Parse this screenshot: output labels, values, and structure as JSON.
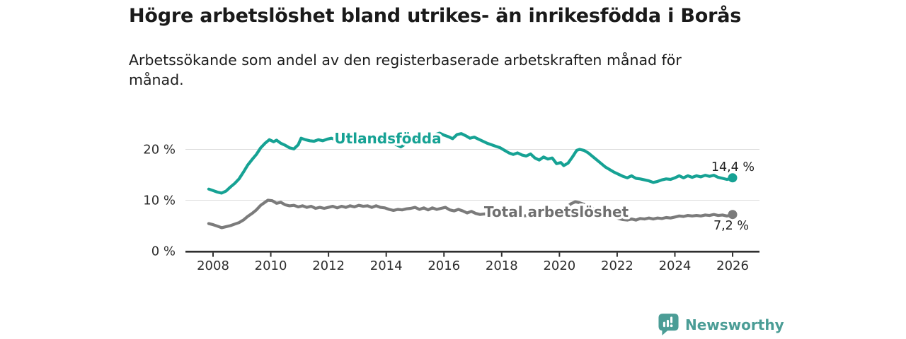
{
  "header": {
    "title": "Högre arbetslöshet bland utrikes- än inrikesfödda i Borås",
    "subtitle": "Arbetssökande som andel av den registerbaserade arbetskraften månad för månad."
  },
  "footer": {
    "brand": "Newsworthy",
    "logo_icon": "bar-chart-speech-bubble-icon"
  },
  "colors": {
    "accent_teal": "#16a294",
    "line_gray": "#7b7b7b",
    "label_gray": "#6f6f6f",
    "logo_teal": "#4b9d96",
    "title_text": "#1a1a1a",
    "body_text": "#1c1c1c",
    "axis_text": "#2e2e2e",
    "axis_line": "#2f2f2f",
    "gridline": "#dcdcdc",
    "value_label": "#222222"
  },
  "chart_data": {
    "type": "line",
    "title": "Högre arbetslöshet bland utrikes- än inrikesfödda i Borås",
    "subtitle": "Arbetssökande som andel av den registerbaserade arbetskraften månad för månad.",
    "grid": "horizontal",
    "legend_position": "inline-labels",
    "x_axis": {
      "range": [
        2007.0,
        2027.0
      ],
      "ticks": [
        2008,
        2010,
        2012,
        2014,
        2016,
        2018,
        2020,
        2022,
        2024,
        2026
      ]
    },
    "y_axis": {
      "range": [
        0,
        25
      ],
      "unit": "%",
      "ticks": [
        {
          "value": 0,
          "label": "0 %"
        },
        {
          "value": 10,
          "label": "10 %"
        },
        {
          "value": 20,
          "label": "20 %"
        }
      ]
    },
    "series": [
      {
        "id": "utlandsfodda",
        "name": "Utlandsfödda",
        "color": "#16a294",
        "end_value": 14.4,
        "end_label": "14,4 %",
        "points": [
          [
            2007.85,
            12.2
          ],
          [
            2008,
            11.9
          ],
          [
            2008.15,
            11.6
          ],
          [
            2008.3,
            11.4
          ],
          [
            2008.45,
            11.8
          ],
          [
            2008.6,
            12.6
          ],
          [
            2008.75,
            13.3
          ],
          [
            2008.9,
            14.2
          ],
          [
            2009.05,
            15.5
          ],
          [
            2009.2,
            16.9
          ],
          [
            2009.35,
            18
          ],
          [
            2009.5,
            19
          ],
          [
            2009.65,
            20.3
          ],
          [
            2009.8,
            21.2
          ],
          [
            2009.95,
            21.9
          ],
          [
            2010.1,
            21.5
          ],
          [
            2010.2,
            21.8
          ],
          [
            2010.35,
            21.2
          ],
          [
            2010.5,
            20.8
          ],
          [
            2010.65,
            20.3
          ],
          [
            2010.8,
            20.1
          ],
          [
            2010.95,
            20.9
          ],
          [
            2011.05,
            22.2
          ],
          [
            2011.2,
            21.9
          ],
          [
            2011.35,
            21.7
          ],
          [
            2011.5,
            21.6
          ],
          [
            2011.65,
            21.9
          ],
          [
            2011.8,
            21.7
          ],
          [
            2011.95,
            22
          ],
          [
            2012.1,
            22.2
          ],
          [
            2012.25,
            21.9
          ],
          [
            2012.4,
            22.5
          ],
          [
            2012.55,
            22.2
          ],
          [
            2012.7,
            22.4
          ],
          [
            2012.85,
            22.1
          ],
          [
            2013,
            22.3
          ],
          [
            2013.15,
            22
          ],
          [
            2013.3,
            22.3
          ],
          [
            2013.45,
            21.9
          ],
          [
            2013.6,
            22.1
          ],
          [
            2013.75,
            21.8
          ],
          [
            2013.9,
            21.9
          ],
          [
            2014.05,
            21.6
          ],
          [
            2014.2,
            21.3
          ],
          [
            2014.35,
            20.9
          ],
          [
            2014.5,
            20.5
          ],
          [
            2014.65,
            21
          ],
          [
            2014.8,
            21.5
          ],
          [
            2014.95,
            21.7
          ],
          [
            2015.1,
            21.9
          ],
          [
            2015.25,
            22.1
          ],
          [
            2015.4,
            22.4
          ],
          [
            2015.55,
            22.6
          ],
          [
            2015.7,
            22.9
          ],
          [
            2015.85,
            23.2
          ],
          [
            2016,
            22.8
          ],
          [
            2016.15,
            22.5
          ],
          [
            2016.3,
            22.1
          ],
          [
            2016.45,
            22.9
          ],
          [
            2016.6,
            23.1
          ],
          [
            2016.75,
            22.7
          ],
          [
            2016.9,
            22.2
          ],
          [
            2017.05,
            22.4
          ],
          [
            2017.2,
            22
          ],
          [
            2017.35,
            21.6
          ],
          [
            2017.5,
            21.2
          ],
          [
            2017.65,
            20.9
          ],
          [
            2017.8,
            20.6
          ],
          [
            2017.95,
            20.3
          ],
          [
            2018.1,
            19.8
          ],
          [
            2018.25,
            19.3
          ],
          [
            2018.4,
            19
          ],
          [
            2018.55,
            19.3
          ],
          [
            2018.7,
            18.9
          ],
          [
            2018.85,
            18.7
          ],
          [
            2019,
            19.1
          ],
          [
            2019.15,
            18.3
          ],
          [
            2019.3,
            17.9
          ],
          [
            2019.45,
            18.5
          ],
          [
            2019.6,
            18.1
          ],
          [
            2019.75,
            18.3
          ],
          [
            2019.9,
            17.2
          ],
          [
            2020.05,
            17.4
          ],
          [
            2020.15,
            16.8
          ],
          [
            2020.3,
            17.3
          ],
          [
            2020.45,
            18.5
          ],
          [
            2020.6,
            19.8
          ],
          [
            2020.7,
            20
          ],
          [
            2020.85,
            19.8
          ],
          [
            2021,
            19.3
          ],
          [
            2021.15,
            18.6
          ],
          [
            2021.3,
            17.9
          ],
          [
            2021.45,
            17.2
          ],
          [
            2021.6,
            16.5
          ],
          [
            2021.75,
            16
          ],
          [
            2021.9,
            15.5
          ],
          [
            2022.05,
            15.1
          ],
          [
            2022.2,
            14.7
          ],
          [
            2022.35,
            14.4
          ],
          [
            2022.5,
            14.8
          ],
          [
            2022.65,
            14.3
          ],
          [
            2022.8,
            14.2
          ],
          [
            2022.95,
            14
          ],
          [
            2023.1,
            13.8
          ],
          [
            2023.25,
            13.5
          ],
          [
            2023.4,
            13.7
          ],
          [
            2023.55,
            14
          ],
          [
            2023.7,
            14.2
          ],
          [
            2023.85,
            14.1
          ],
          [
            2024,
            14.4
          ],
          [
            2024.15,
            14.8
          ],
          [
            2024.3,
            14.4
          ],
          [
            2024.45,
            14.8
          ],
          [
            2024.6,
            14.5
          ],
          [
            2024.75,
            14.8
          ],
          [
            2024.9,
            14.6
          ],
          [
            2025.05,
            14.9
          ],
          [
            2025.2,
            14.7
          ],
          [
            2025.35,
            14.9
          ],
          [
            2025.5,
            14.5
          ],
          [
            2025.65,
            14.3
          ],
          [
            2025.8,
            14.1
          ],
          [
            2025.9,
            14.2
          ],
          [
            2026,
            14.4
          ]
        ]
      },
      {
        "id": "total-arbetsloshet",
        "name": "Total arbetslöshet",
        "color": "#7b7b7b",
        "end_value": 7.2,
        "end_label": "7,2 %",
        "points": [
          [
            2007.85,
            5.4
          ],
          [
            2008,
            5.2
          ],
          [
            2008.15,
            4.9
          ],
          [
            2008.3,
            4.6
          ],
          [
            2008.45,
            4.8
          ],
          [
            2008.6,
            5
          ],
          [
            2008.75,
            5.3
          ],
          [
            2008.9,
            5.6
          ],
          [
            2009.05,
            6.1
          ],
          [
            2009.2,
            6.8
          ],
          [
            2009.35,
            7.4
          ],
          [
            2009.5,
            8.1
          ],
          [
            2009.65,
            9
          ],
          [
            2009.8,
            9.6
          ],
          [
            2009.9,
            10
          ],
          [
            2010.05,
            9.9
          ],
          [
            2010.2,
            9.4
          ],
          [
            2010.35,
            9.6
          ],
          [
            2010.5,
            9.1
          ],
          [
            2010.65,
            8.9
          ],
          [
            2010.8,
            9
          ],
          [
            2010.95,
            8.7
          ],
          [
            2011.1,
            8.9
          ],
          [
            2011.25,
            8.6
          ],
          [
            2011.4,
            8.8
          ],
          [
            2011.55,
            8.4
          ],
          [
            2011.7,
            8.6
          ],
          [
            2011.85,
            8.4
          ],
          [
            2012,
            8.6
          ],
          [
            2012.15,
            8.8
          ],
          [
            2012.3,
            8.5
          ],
          [
            2012.45,
            8.8
          ],
          [
            2012.6,
            8.6
          ],
          [
            2012.75,
            8.9
          ],
          [
            2012.9,
            8.7
          ],
          [
            2013.05,
            9
          ],
          [
            2013.2,
            8.8
          ],
          [
            2013.35,
            8.9
          ],
          [
            2013.5,
            8.6
          ],
          [
            2013.65,
            8.9
          ],
          [
            2013.8,
            8.6
          ],
          [
            2013.95,
            8.5
          ],
          [
            2014.1,
            8.2
          ],
          [
            2014.25,
            8
          ],
          [
            2014.4,
            8.2
          ],
          [
            2014.55,
            8.1
          ],
          [
            2014.7,
            8.3
          ],
          [
            2014.85,
            8.4
          ],
          [
            2015,
            8.6
          ],
          [
            2015.15,
            8.2
          ],
          [
            2015.3,
            8.5
          ],
          [
            2015.45,
            8.1
          ],
          [
            2015.6,
            8.5
          ],
          [
            2015.75,
            8.2
          ],
          [
            2015.9,
            8.4
          ],
          [
            2016.05,
            8.6
          ],
          [
            2016.2,
            8.1
          ],
          [
            2016.35,
            7.9
          ],
          [
            2016.5,
            8.2
          ],
          [
            2016.65,
            7.9
          ],
          [
            2016.8,
            7.5
          ],
          [
            2016.95,
            7.8
          ],
          [
            2017.1,
            7.4
          ],
          [
            2017.25,
            7.2
          ],
          [
            2017.4,
            7.3
          ],
          [
            2017.55,
            7.2
          ],
          [
            2017.7,
            7.3
          ],
          [
            2017.85,
            7.1
          ],
          [
            2018,
            7.2
          ],
          [
            2018.15,
            7.4
          ],
          [
            2018.3,
            7.3
          ],
          [
            2018.45,
            7.2
          ],
          [
            2018.6,
            7
          ],
          [
            2018.75,
            6.9
          ],
          [
            2018.9,
            7
          ],
          [
            2019.05,
            6.9
          ],
          [
            2019.2,
            6.8
          ],
          [
            2019.35,
            6.9
          ],
          [
            2019.5,
            6.8
          ],
          [
            2019.65,
            6.9
          ],
          [
            2019.8,
            7
          ],
          [
            2019.95,
            7.2
          ],
          [
            2020.1,
            7.8
          ],
          [
            2020.25,
            8.6
          ],
          [
            2020.4,
            9.3
          ],
          [
            2020.55,
            9.7
          ],
          [
            2020.7,
            9.5
          ],
          [
            2020.85,
            9.2
          ],
          [
            2021,
            8.8
          ],
          [
            2021.15,
            8.4
          ],
          [
            2021.3,
            8
          ],
          [
            2021.45,
            7.6
          ],
          [
            2021.6,
            7.3
          ],
          [
            2021.75,
            7
          ],
          [
            2021.9,
            6.7
          ],
          [
            2022.05,
            6.4
          ],
          [
            2022.2,
            6.2
          ],
          [
            2022.35,
            6.1
          ],
          [
            2022.5,
            6.3
          ],
          [
            2022.65,
            6.1
          ],
          [
            2022.8,
            6.4
          ],
          [
            2022.95,
            6.3
          ],
          [
            2023.1,
            6.5
          ],
          [
            2023.25,
            6.3
          ],
          [
            2023.4,
            6.5
          ],
          [
            2023.55,
            6.4
          ],
          [
            2023.7,
            6.6
          ],
          [
            2023.85,
            6.5
          ],
          [
            2024,
            6.7
          ],
          [
            2024.15,
            6.9
          ],
          [
            2024.3,
            6.8
          ],
          [
            2024.45,
            7
          ],
          [
            2024.6,
            6.9
          ],
          [
            2024.75,
            7
          ],
          [
            2024.9,
            6.9
          ],
          [
            2025.05,
            7.1
          ],
          [
            2025.2,
            7
          ],
          [
            2025.35,
            7.2
          ],
          [
            2025.5,
            7
          ],
          [
            2025.65,
            7.1
          ],
          [
            2025.8,
            6.9
          ],
          [
            2025.9,
            7
          ],
          [
            2026,
            7.2
          ]
        ]
      }
    ]
  }
}
